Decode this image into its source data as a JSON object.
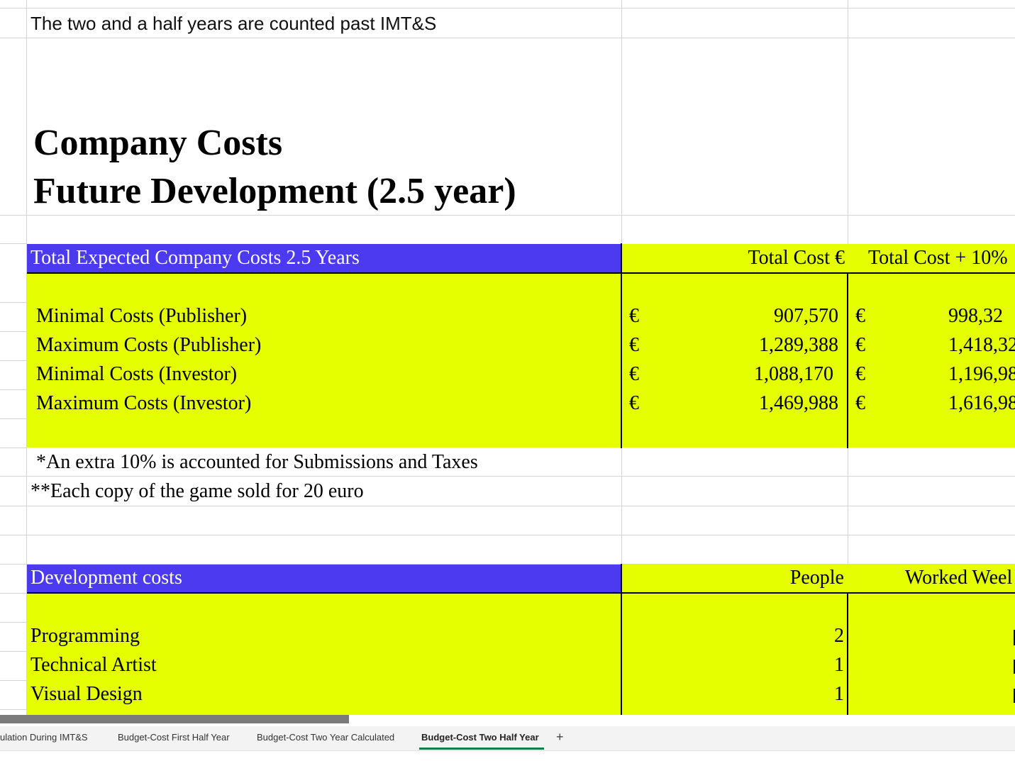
{
  "note": "The two and a half years are counted past IMT&S",
  "title": {
    "line1": "Company Costs",
    "line2": "Future Development (2.5 year)"
  },
  "colors": {
    "header_blue": "#4b3af0",
    "highlight_yellow": "#e5ff00",
    "active_tab_underline": "#1d7a45"
  },
  "company_costs": {
    "header": "Total Expected Company Costs 2.5 Years",
    "col_total": "Total Cost €",
    "col_total_plus": "Total Cost + 10%",
    "currency_symbol": "€",
    "rows": [
      {
        "label": "Minimal Costs (Publisher)",
        "total": "907,570",
        "total_plus": "998,32"
      },
      {
        "label": "Maximum Costs (Publisher)",
        "total": "1,289,388",
        "total_plus": "1,418,32"
      },
      {
        "label": "Minimal Costs (Investor)",
        "total": "1,088,170",
        "total_plus": "1,196,98"
      },
      {
        "label": "Maximum Costs (Investor)",
        "total": "1,469,988",
        "total_plus": "1,616,98"
      }
    ],
    "footnote1": "*An extra 10% is accounted for Submissions and Taxes",
    "footnote2": "**Each copy of the game sold for 20 euro"
  },
  "development_costs": {
    "header": "Development costs",
    "col_people": "People",
    "col_weeks": "Worked Weel",
    "rows": [
      {
        "label": "Programming",
        "people": "2"
      },
      {
        "label": "Technical Artist",
        "people": "1"
      },
      {
        "label": "Visual Design",
        "people": "1"
      }
    ]
  },
  "tabs": [
    {
      "label": "ulation During IMT&S",
      "active": false
    },
    {
      "label": "Budget-Cost First Half Year",
      "active": false
    },
    {
      "label": "Budget-Cost Two Year Calculated",
      "active": false
    },
    {
      "label": "Budget-Cost Two Half Year",
      "active": true
    }
  ],
  "add_sheet_label": "+"
}
